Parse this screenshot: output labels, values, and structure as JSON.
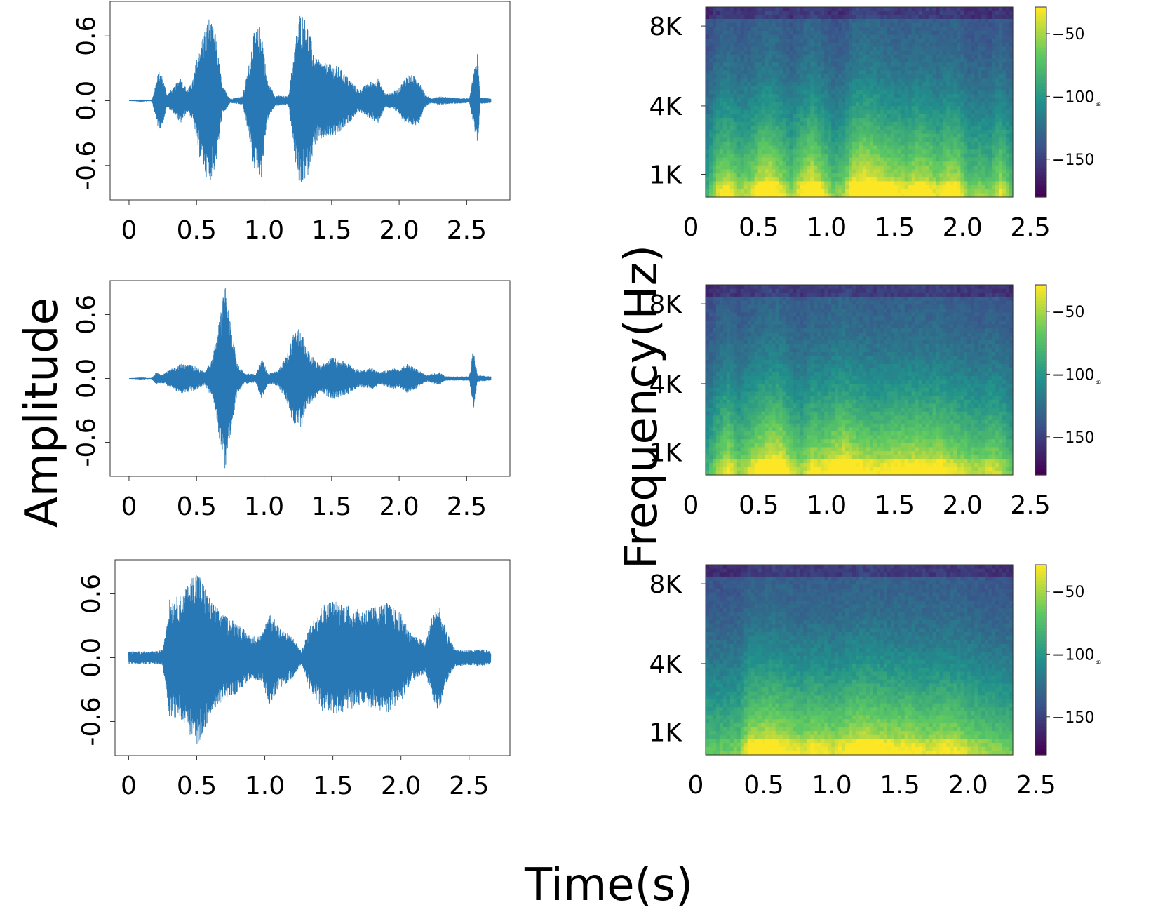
{
  "figure": {
    "ylabel_left": "Amplitude",
    "ylabel_right": "Frequency(Hz)",
    "xlabel": "Time(s)"
  },
  "colors": {
    "waveform": "#2878b5",
    "axes": "#333333",
    "viridis": [
      "#440154",
      "#3b528b",
      "#21918c",
      "#5ec962",
      "#fde725"
    ]
  },
  "chart_data": [
    {
      "type": "line",
      "panel": "waveform-1",
      "x_ticks": [
        "0",
        "0.5",
        "1.0",
        "1.5",
        "2.0",
        "2.5"
      ],
      "y_ticks": [
        "-0.6",
        "0.0",
        "0.6"
      ],
      "xlim": [
        -0.14,
        2.82
      ],
      "ylim": [
        -0.92,
        0.92
      ],
      "duration": 2.68,
      "envelope": [
        [
          0.0,
          0.0
        ],
        [
          0.17,
          0.005
        ],
        [
          0.19,
          0.12
        ],
        [
          0.22,
          0.28
        ],
        [
          0.25,
          0.22
        ],
        [
          0.28,
          0.06
        ],
        [
          0.33,
          0.12
        ],
        [
          0.38,
          0.22
        ],
        [
          0.43,
          0.1
        ],
        [
          0.47,
          0.18
        ],
        [
          0.52,
          0.52
        ],
        [
          0.59,
          0.78
        ],
        [
          0.64,
          0.62
        ],
        [
          0.69,
          0.14
        ],
        [
          0.75,
          0.02
        ],
        [
          0.84,
          0.04
        ],
        [
          0.88,
          0.28
        ],
        [
          0.92,
          0.62
        ],
        [
          0.98,
          0.72
        ],
        [
          1.02,
          0.2
        ],
        [
          1.08,
          0.05
        ],
        [
          1.18,
          0.04
        ],
        [
          1.23,
          0.55
        ],
        [
          1.27,
          0.85
        ],
        [
          1.32,
          0.72
        ],
        [
          1.38,
          0.4
        ],
        [
          1.45,
          0.35
        ],
        [
          1.55,
          0.32
        ],
        [
          1.62,
          0.22
        ],
        [
          1.7,
          0.1
        ],
        [
          1.84,
          0.22
        ],
        [
          1.9,
          0.06
        ],
        [
          1.99,
          0.1
        ],
        [
          2.06,
          0.25
        ],
        [
          2.14,
          0.22
        ],
        [
          2.19,
          0.06
        ],
        [
          2.24,
          0.02
        ],
        [
          2.3,
          0.04
        ],
        [
          2.38,
          0.03
        ],
        [
          2.52,
          0.02
        ],
        [
          2.58,
          0.45
        ],
        [
          2.6,
          0.03
        ],
        [
          2.68,
          0.02
        ]
      ]
    },
    {
      "type": "line",
      "panel": "waveform-2",
      "x_ticks": [
        "0",
        "0.5",
        "1.0",
        "1.5",
        "2.0",
        "2.5"
      ],
      "y_ticks": [
        "-0.6",
        "0.0",
        "0.6"
      ],
      "xlim": [
        -0.14,
        2.82
      ],
      "ylim": [
        -0.92,
        0.92
      ],
      "duration": 2.68,
      "envelope": [
        [
          0.0,
          0.0
        ],
        [
          0.17,
          0.005
        ],
        [
          0.2,
          0.06
        ],
        [
          0.24,
          0.04
        ],
        [
          0.3,
          0.08
        ],
        [
          0.38,
          0.14
        ],
        [
          0.48,
          0.12
        ],
        [
          0.56,
          0.06
        ],
        [
          0.62,
          0.2
        ],
        [
          0.68,
          0.65
        ],
        [
          0.71,
          0.88
        ],
        [
          0.75,
          0.55
        ],
        [
          0.8,
          0.15
        ],
        [
          0.85,
          0.05
        ],
        [
          0.94,
          0.04
        ],
        [
          0.98,
          0.2
        ],
        [
          1.03,
          0.05
        ],
        [
          1.1,
          0.07
        ],
        [
          1.17,
          0.22
        ],
        [
          1.22,
          0.46
        ],
        [
          1.27,
          0.48
        ],
        [
          1.33,
          0.25
        ],
        [
          1.42,
          0.12
        ],
        [
          1.5,
          0.2
        ],
        [
          1.6,
          0.16
        ],
        [
          1.7,
          0.08
        ],
        [
          1.8,
          0.1
        ],
        [
          1.86,
          0.06
        ],
        [
          1.96,
          0.1
        ],
        [
          2.0,
          0.08
        ],
        [
          2.06,
          0.14
        ],
        [
          2.12,
          0.1
        ],
        [
          2.2,
          0.03
        ],
        [
          2.3,
          0.06
        ],
        [
          2.34,
          0.02
        ],
        [
          2.45,
          0.02
        ],
        [
          2.52,
          0.02
        ],
        [
          2.55,
          0.3
        ],
        [
          2.58,
          0.03
        ],
        [
          2.68,
          0.02
        ]
      ]
    },
    {
      "type": "line",
      "panel": "waveform-3",
      "x_ticks": [
        "0",
        "0.5",
        "1.0",
        "1.5",
        "2.0",
        "2.5"
      ],
      "y_ticks": [
        "-0.6",
        "0.0",
        "0.6"
      ],
      "xlim": [
        -0.1,
        2.8
      ],
      "ylim": [
        -0.92,
        0.92
      ],
      "duration": 2.66,
      "envelope": [
        [
          0.0,
          0.06
        ],
        [
          0.2,
          0.06
        ],
        [
          0.25,
          0.08
        ],
        [
          0.3,
          0.55
        ],
        [
          0.4,
          0.6
        ],
        [
          0.5,
          0.85
        ],
        [
          0.6,
          0.55
        ],
        [
          0.7,
          0.4
        ],
        [
          0.78,
          0.35
        ],
        [
          0.9,
          0.2
        ],
        [
          0.98,
          0.22
        ],
        [
          1.03,
          0.45
        ],
        [
          1.1,
          0.3
        ],
        [
          1.2,
          0.2
        ],
        [
          1.27,
          0.06
        ],
        [
          1.33,
          0.3
        ],
        [
          1.42,
          0.5
        ],
        [
          1.5,
          0.55
        ],
        [
          1.6,
          0.5
        ],
        [
          1.7,
          0.45
        ],
        [
          1.8,
          0.48
        ],
        [
          1.9,
          0.52
        ],
        [
          2.0,
          0.42
        ],
        [
          2.08,
          0.22
        ],
        [
          2.18,
          0.15
        ],
        [
          2.24,
          0.45
        ],
        [
          2.28,
          0.5
        ],
        [
          2.33,
          0.25
        ],
        [
          2.4,
          0.08
        ],
        [
          2.5,
          0.07
        ],
        [
          2.6,
          0.08
        ],
        [
          2.66,
          0.06
        ]
      ]
    },
    {
      "type": "heatmap",
      "panel": "spectrogram-1",
      "x_ticks": [
        "0",
        "0.5",
        "1.0",
        "1.5",
        "2.0",
        "2.5"
      ],
      "y_ticks": [
        "1K",
        "4K",
        "8K"
      ],
      "colorbar_ticks": [
        "-50",
        "-100",
        "-150"
      ],
      "colorbar_unit": "dB",
      "colorbar_range": [
        -185,
        -30
      ],
      "xlim": [
        0,
        2.5
      ],
      "energy": [
        0.05,
        0.45,
        0.55,
        0.35,
        0.4,
        0.62,
        0.7,
        0.5,
        0.3,
        0.55,
        0.72,
        0.5,
        0.25,
        0.32,
        0.7,
        0.8,
        0.72,
        0.6,
        0.55,
        0.5,
        0.62,
        0.58,
        0.45,
        0.6,
        0.55,
        0.25,
        0.3,
        0.25,
        0.5,
        0.2
      ]
    },
    {
      "type": "heatmap",
      "panel": "spectrogram-2",
      "x_ticks": [
        "0",
        "0.5",
        "1.0",
        "1.5",
        "2.0",
        "2.5"
      ],
      "y_ticks": [
        "1K",
        "4K",
        "8K"
      ],
      "colorbar_ticks": [
        "-50",
        "-100",
        "-150"
      ],
      "colorbar_unit": "dB",
      "colorbar_range": [
        -185,
        -30
      ],
      "xlim": [
        0,
        2.5
      ],
      "energy": [
        0.05,
        0.35,
        0.55,
        0.3,
        0.45,
        0.6,
        0.72,
        0.7,
        0.45,
        0.35,
        0.55,
        0.5,
        0.62,
        0.7,
        0.6,
        0.55,
        0.5,
        0.52,
        0.58,
        0.55,
        0.6,
        0.55,
        0.6,
        0.5,
        0.45,
        0.4,
        0.35,
        0.45,
        0.4,
        0.2
      ]
    },
    {
      "type": "heatmap",
      "panel": "spectrogram-3",
      "x_ticks": [
        "0",
        "0.5",
        "1.0",
        "1.5",
        "2.0",
        "2.5"
      ],
      "y_ticks": [
        "1K",
        "4K",
        "8K"
      ],
      "colorbar_ticks": [
        "-50",
        "-100",
        "-150"
      ],
      "colorbar_unit": "dB",
      "colorbar_range": [
        -185,
        -30
      ],
      "xlim": [
        0,
        2.5
      ],
      "energy": [
        0.2,
        0.2,
        0.22,
        0.25,
        0.55,
        0.6,
        0.62,
        0.58,
        0.5,
        0.45,
        0.52,
        0.5,
        0.45,
        0.5,
        0.6,
        0.62,
        0.58,
        0.55,
        0.52,
        0.55,
        0.5,
        0.45,
        0.5,
        0.52,
        0.48,
        0.4,
        0.35,
        0.3,
        0.28,
        0.25
      ]
    }
  ]
}
